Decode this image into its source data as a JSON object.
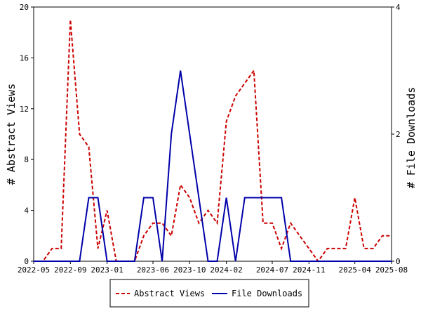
{
  "chart_data": {
    "type": "line",
    "x_ticks": [
      "2022-05",
      "2022-09",
      "2023-01",
      "2023-06",
      "2023-10",
      "2024-02",
      "2024-07",
      "2024-11",
      "2025-04",
      "2025-08"
    ],
    "x": [
      "2022-05",
      "2022-06",
      "2022-07",
      "2022-08",
      "2022-09",
      "2022-10",
      "2022-11",
      "2022-12",
      "2023-01",
      "2023-02",
      "2023-03",
      "2023-04",
      "2023-05",
      "2023-06",
      "2023-07",
      "2023-08",
      "2023-09",
      "2023-10",
      "2023-11",
      "2023-12",
      "2024-01",
      "2024-02",
      "2024-03",
      "2024-04",
      "2024-05",
      "2024-06",
      "2024-07",
      "2024-08",
      "2024-09",
      "2024-10",
      "2024-11",
      "2024-12",
      "2025-01",
      "2025-02",
      "2025-03",
      "2025-04",
      "2025-05",
      "2025-06",
      "2025-07",
      "2025-08"
    ],
    "series": [
      {
        "name": "Abstract Views",
        "axis": "left",
        "color": "#cc0000",
        "style": "dashed",
        "values": [
          0,
          0,
          1,
          1,
          19,
          10,
          9,
          1,
          4,
          0,
          0,
          0,
          2,
          3,
          3,
          2,
          6,
          5,
          3,
          4,
          3,
          11,
          13,
          14,
          15,
          3,
          3,
          1,
          3,
          2,
          1,
          0,
          1,
          1,
          1,
          5,
          1,
          1,
          2,
          2
        ]
      },
      {
        "name": "File Downloads",
        "axis": "right",
        "color": "#0000aa",
        "style": "solid",
        "values": [
          0,
          0,
          0,
          0,
          0,
          0,
          1,
          1,
          0,
          0,
          0,
          0,
          1,
          1,
          0,
          2,
          3,
          2,
          1,
          0,
          0,
          1,
          0,
          1,
          1,
          1,
          1,
          1,
          0,
          0,
          0,
          0,
          0,
          0,
          0,
          0,
          0,
          0,
          0,
          0
        ]
      }
    ],
    "y_left": {
      "label": "# Abstract Views",
      "ylim": [
        0,
        20
      ],
      "ticks": [
        "0",
        "4",
        "8",
        "12",
        "16",
        "20"
      ]
    },
    "y_right": {
      "label": "# File Downloads",
      "ylim": [
        0,
        4
      ],
      "ticks": [
        "0",
        "2",
        "4"
      ]
    },
    "grid": false,
    "legend": {
      "position": "bottom-center",
      "entries": [
        "Abstract Views",
        "File Downloads"
      ]
    }
  }
}
